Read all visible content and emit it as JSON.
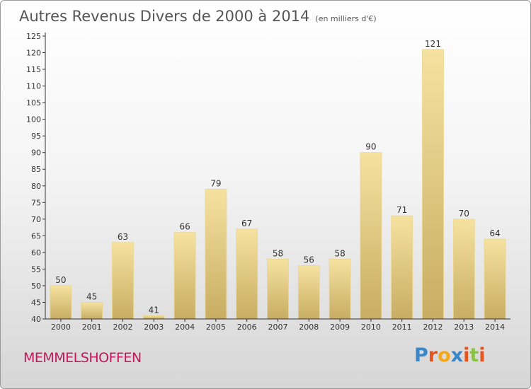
{
  "title": "Autres Revenus Divers de 2000 à 2014",
  "subtitle": "(en milliers d'€)",
  "town": "MEMMELSHOFFEN",
  "logo": {
    "letters": [
      "P",
      "r",
      "o",
      "x",
      "i",
      "t",
      "i"
    ],
    "colors": [
      "#3a86c8",
      "#e8541e",
      "#f4a81d",
      "#3a86c8",
      "#e8541e",
      "#8bc34a",
      "#e8541e"
    ]
  },
  "colors": {
    "bar_light": "#f6e2a0",
    "bar_dark": "#c8ad63",
    "axis": "#333333",
    "grid": "#cccccc"
  },
  "chart_data": {
    "type": "bar",
    "title": "Autres Revenus Divers de 2000 à 2014",
    "subtitle": "(en milliers d'€)",
    "categories": [
      "2000",
      "2001",
      "2002",
      "2003",
      "2004",
      "2005",
      "2006",
      "2007",
      "2008",
      "2009",
      "2010",
      "2011",
      "2012",
      "2013",
      "2014"
    ],
    "values": [
      50,
      45,
      63,
      41,
      66,
      79,
      67,
      58,
      56,
      58,
      90,
      71,
      121,
      70,
      64
    ],
    "ylim": [
      40,
      125
    ],
    "yticks": [
      40,
      45,
      50,
      55,
      60,
      65,
      70,
      75,
      80,
      85,
      90,
      95,
      100,
      105,
      110,
      115,
      120,
      125
    ],
    "xlabel": "",
    "ylabel": "",
    "grid": false,
    "legend": "none"
  }
}
